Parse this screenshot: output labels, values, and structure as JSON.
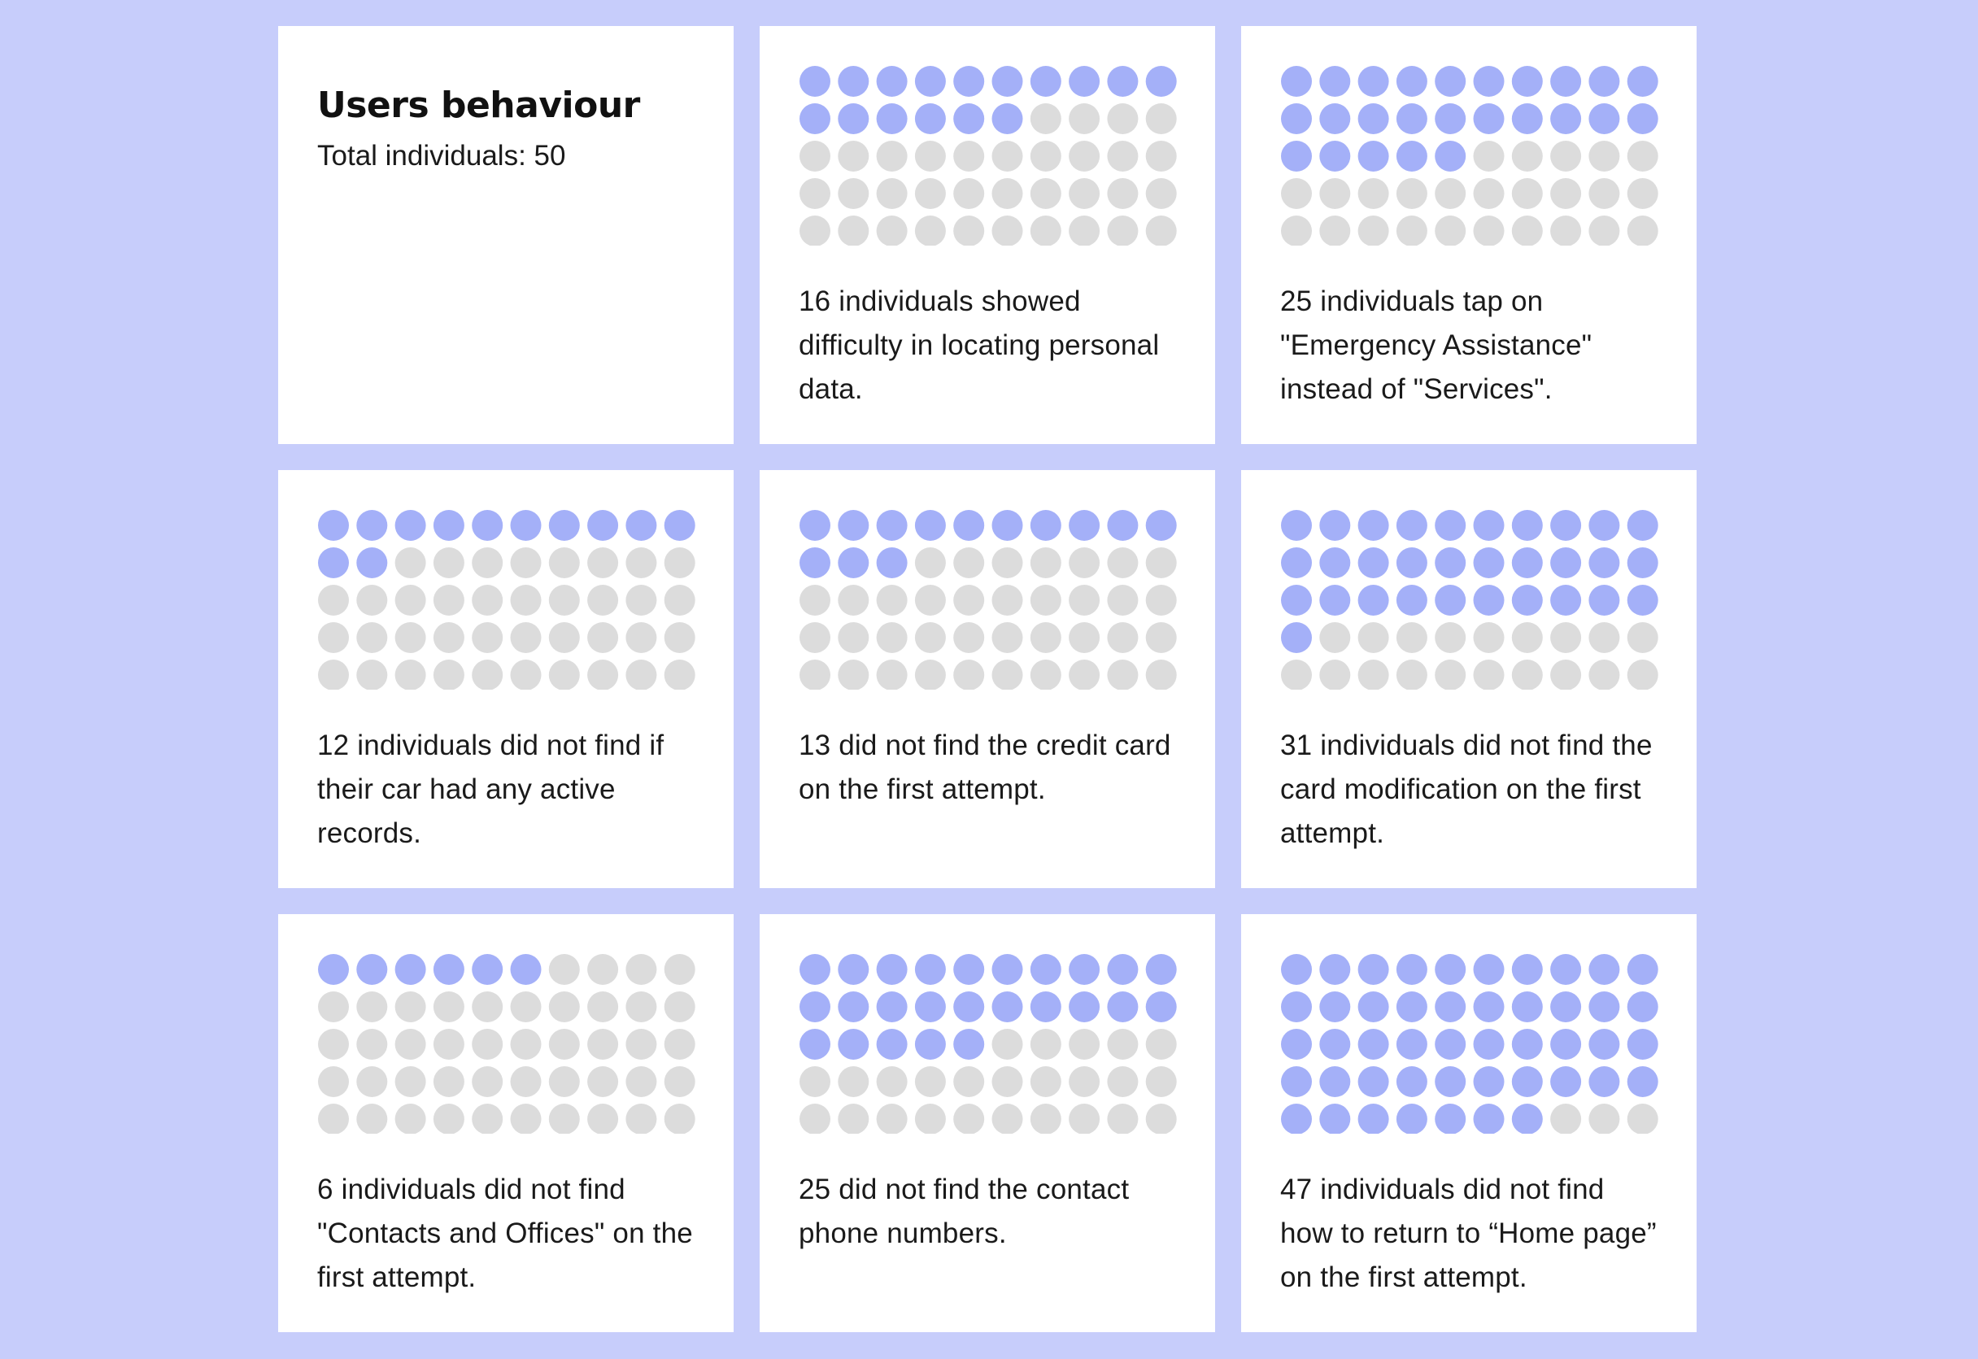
{
  "header": {
    "title": "Users behaviour",
    "total_label": "Total individuals: 50"
  },
  "colors": {
    "background": "#c7cdfb",
    "card": "#ffffff",
    "filled_dot": "#a4b0f8",
    "empty_dot": "#dcdcdc"
  },
  "chart_data": {
    "type": "waffle",
    "total": 50,
    "grid": {
      "rows": 5,
      "columns": 10
    },
    "items": [
      {
        "value": 16,
        "caption": "16 individuals showed difficulty in locating personal data."
      },
      {
        "value": 25,
        "caption": "25 individuals tap on \"Emergency Assistance\" instead of \"Services\"."
      },
      {
        "value": 12,
        "caption": "12 individuals did not find if their car had any active records."
      },
      {
        "value": 13,
        "caption": "13 did not find the credit card on the first attempt."
      },
      {
        "value": 31,
        "caption": "31 individuals did not find the card modification on the first attempt."
      },
      {
        "value": 6,
        "caption": "6 individuals did not find \"Contacts and Offices\" on the first attempt."
      },
      {
        "value": 25,
        "caption": "25 did not find the contact phone numbers."
      },
      {
        "value": 47,
        "caption": "47 individuals did not find how to return to “Home page” on the first attempt."
      }
    ]
  }
}
